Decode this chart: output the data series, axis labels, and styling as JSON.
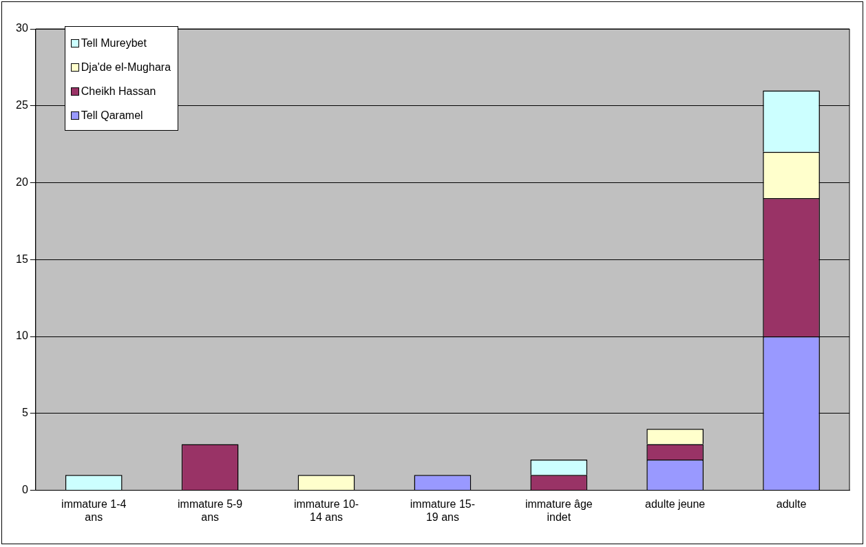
{
  "chart_data": {
    "type": "bar",
    "stacked": true,
    "categories": [
      "immature 1-4 ans",
      "immature 5-9 ans",
      "immature 10-14 ans",
      "immature 15-19 ans",
      "immature âge indet",
      "adulte jeune",
      "adulte"
    ],
    "series": [
      {
        "name": "Tell Qaramel",
        "color": "#9999ff",
        "values": [
          0,
          0,
          0,
          1,
          0,
          2,
          10
        ]
      },
      {
        "name": "Cheikh Hassan",
        "color": "#993366",
        "values": [
          0,
          3,
          0,
          0,
          1,
          1,
          9
        ]
      },
      {
        "name": "Dja'de el-Mughara",
        "color": "#ffffcc",
        "values": [
          0,
          0,
          1,
          0,
          0,
          1,
          3
        ]
      },
      {
        "name": "Tell Mureybet",
        "color": "#ccffff",
        "values": [
          1,
          0,
          0,
          0,
          1,
          0,
          4
        ]
      }
    ],
    "ylim": [
      0,
      30
    ],
    "yticks": [
      0,
      5,
      10,
      15,
      20,
      25,
      30
    ],
    "grid": "y",
    "legend": "top left"
  }
}
